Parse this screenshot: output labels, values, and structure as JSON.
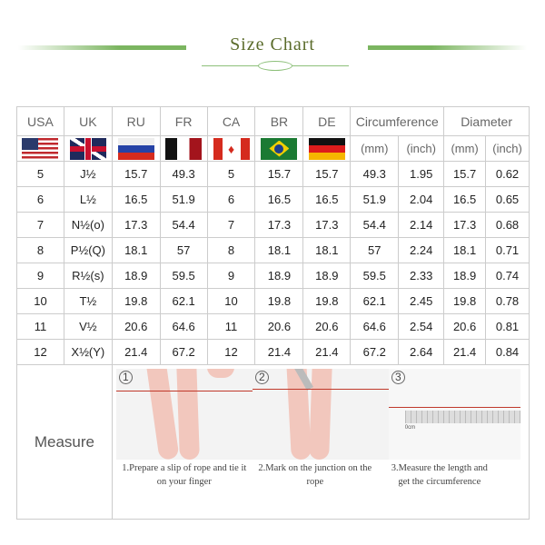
{
  "title": "Size Chart",
  "headers": [
    "USA",
    "UK",
    "RU",
    "FR",
    "CA",
    "BR",
    "DE",
    "Circumference",
    "Diameter"
  ],
  "units": [
    "(mm)",
    "(inch)",
    "(mm)",
    "(inch)"
  ],
  "flags": [
    "us-flag",
    "uk-flag",
    "russia-flag",
    "france-flag",
    "canada-flag",
    "brazil-flag",
    "germany-flag"
  ],
  "rows": [
    [
      "5",
      "J½",
      "15.7",
      "49.3",
      "5",
      "15.7",
      "15.7",
      "49.3",
      "1.95",
      "15.7",
      "0.62"
    ],
    [
      "6",
      "L½",
      "16.5",
      "51.9",
      "6",
      "16.5",
      "16.5",
      "51.9",
      "2.04",
      "16.5",
      "0.65"
    ],
    [
      "7",
      "N½(o)",
      "17.3",
      "54.4",
      "7",
      "17.3",
      "17.3",
      "54.4",
      "2.14",
      "17.3",
      "0.68"
    ],
    [
      "8",
      "P½(Q)",
      "18.1",
      "57",
      "8",
      "18.1",
      "18.1",
      "57",
      "2.24",
      "18.1",
      "0.71"
    ],
    [
      "9",
      "R½(s)",
      "18.9",
      "59.5",
      "9",
      "18.9",
      "18.9",
      "59.5",
      "2.33",
      "18.9",
      "0.74"
    ],
    [
      "10",
      "T½",
      "19.8",
      "62.1",
      "10",
      "19.8",
      "19.8",
      "62.1",
      "2.45",
      "19.8",
      "0.78"
    ],
    [
      "11",
      "V½",
      "20.6",
      "64.6",
      "11",
      "20.6",
      "20.6",
      "64.6",
      "2.54",
      "20.6",
      "0.81"
    ],
    [
      "12",
      "X½(Y)",
      "21.4",
      "67.2",
      "12",
      "21.4",
      "21.4",
      "67.2",
      "2.64",
      "21.4",
      "0.84"
    ]
  ],
  "measure": {
    "label": "Measure",
    "steps": [
      {
        "num": "1",
        "caption": "1.Prepare a slip of rope and tie it on your finger"
      },
      {
        "num": "2",
        "caption": "2.Mark on the junction on the rope"
      },
      {
        "num": "3",
        "caption": "3.Measure the length and get the circumference"
      }
    ],
    "ruler_label": "0cm"
  }
}
